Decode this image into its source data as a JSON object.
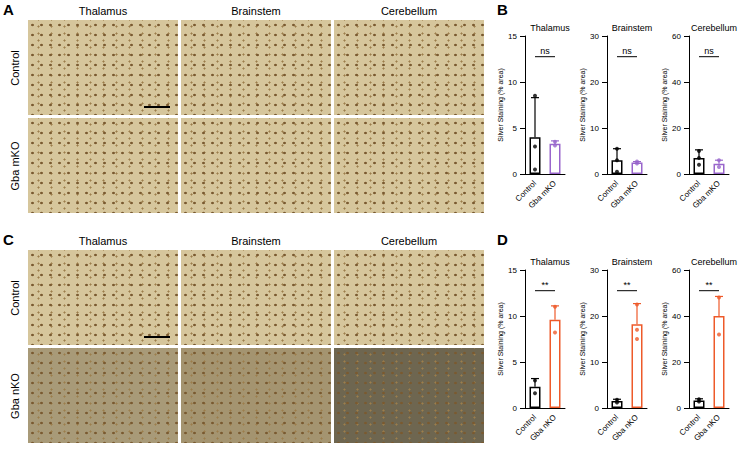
{
  "figure": {
    "panel_labels": [
      "A",
      "B",
      "C",
      "D"
    ],
    "image_panels": [
      {
        "columns": [
          "Thalamus",
          "Brainstem",
          "Cerebellum"
        ],
        "rows": [
          "Control",
          "Gba mKO"
        ]
      },
      {
        "columns": [
          "Thalamus",
          "Brainstem",
          "Cerebellum"
        ],
        "rows": [
          "Control",
          "Gba nKO"
        ]
      }
    ]
  },
  "chart_data": [
    {
      "type": "bar",
      "title": "Thalamus",
      "y_label": "Silver Staining (% area)",
      "categories": [
        "Control",
        "Gba mKO"
      ],
      "values": [
        4.0,
        3.3
      ],
      "errors": [
        4.3,
        0.3
      ],
      "points": [
        [
          8.5,
          3.0,
          0.5
        ],
        [
          3.1,
          3.5
        ]
      ],
      "colors": [
        "#000000",
        "#9966cc"
      ],
      "ylim": [
        0,
        15
      ],
      "yticks": [
        0,
        5,
        10,
        15
      ],
      "annotation": "ns",
      "grid": false
    },
    {
      "type": "bar",
      "title": "Brainstem",
      "y_label": "Silver Staining (% area)",
      "categories": [
        "Control",
        "Gba mKO"
      ],
      "values": [
        3.0,
        2.5
      ],
      "errors": [
        2.5,
        0.2
      ],
      "points": [
        [
          5.5,
          3.0,
          0.5
        ],
        [
          2.3,
          2.7
        ]
      ],
      "colors": [
        "#000000",
        "#9966cc"
      ],
      "ylim": [
        0,
        30
      ],
      "yticks": [
        0,
        10,
        20,
        30
      ],
      "annotation": "ns",
      "grid": false
    },
    {
      "type": "bar",
      "title": "Cerebellum",
      "y_label": "Silver Staining (% area)",
      "categories": [
        "Control",
        "Gba mKO"
      ],
      "values": [
        7.0,
        4.5
      ],
      "errors": [
        3.5,
        1.5
      ],
      "points": [
        [
          10.0,
          7.0,
          4.0
        ],
        [
          3.0,
          6.0
        ]
      ],
      "colors": [
        "#000000",
        "#9966cc"
      ],
      "ylim": [
        0,
        60
      ],
      "yticks": [
        0,
        20,
        40,
        60
      ],
      "annotation": "ns",
      "grid": false
    },
    {
      "type": "bar",
      "title": "Thalamus",
      "y_label": "Silver Staining (% area)",
      "categories": [
        "Control",
        "Gba nKO"
      ],
      "values": [
        2.3,
        9.6
      ],
      "errors": [
        0.9,
        1.5
      ],
      "points": [
        [
          3.0,
          1.6
        ],
        [
          11.0,
          8.2
        ]
      ],
      "colors": [
        "#000000",
        "#ee5a2a"
      ],
      "ylim": [
        0,
        15
      ],
      "yticks": [
        0,
        5,
        10,
        15
      ],
      "annotation": "**",
      "grid": false
    },
    {
      "type": "bar",
      "title": "Brainstem",
      "y_label": "Silver Staining (% area)",
      "categories": [
        "Control",
        "Gba nKO"
      ],
      "values": [
        1.5,
        18.2
      ],
      "errors": [
        0.4,
        4.5
      ],
      "points": [
        [
          1.8,
          1.2
        ],
        [
          22.5,
          17.0,
          15.0
        ]
      ],
      "colors": [
        "#000000",
        "#ee5a2a"
      ],
      "ylim": [
        0,
        30
      ],
      "yticks": [
        0,
        10,
        20,
        30
      ],
      "annotation": "**",
      "grid": false
    },
    {
      "type": "bar",
      "title": "Cerebellum",
      "y_label": "Silver Staining (% area)",
      "categories": [
        "Control",
        "Gba nKO"
      ],
      "values": [
        3.3,
        40.0
      ],
      "errors": [
        0.7,
        8.5
      ],
      "points": [
        [
          3.8,
          2.8
        ],
        [
          48.0,
          32.0
        ]
      ],
      "colors": [
        "#000000",
        "#ee5a2a"
      ],
      "ylim": [
        0,
        60
      ],
      "yticks": [
        0,
        20,
        40,
        60
      ],
      "annotation": "**",
      "grid": false
    }
  ]
}
